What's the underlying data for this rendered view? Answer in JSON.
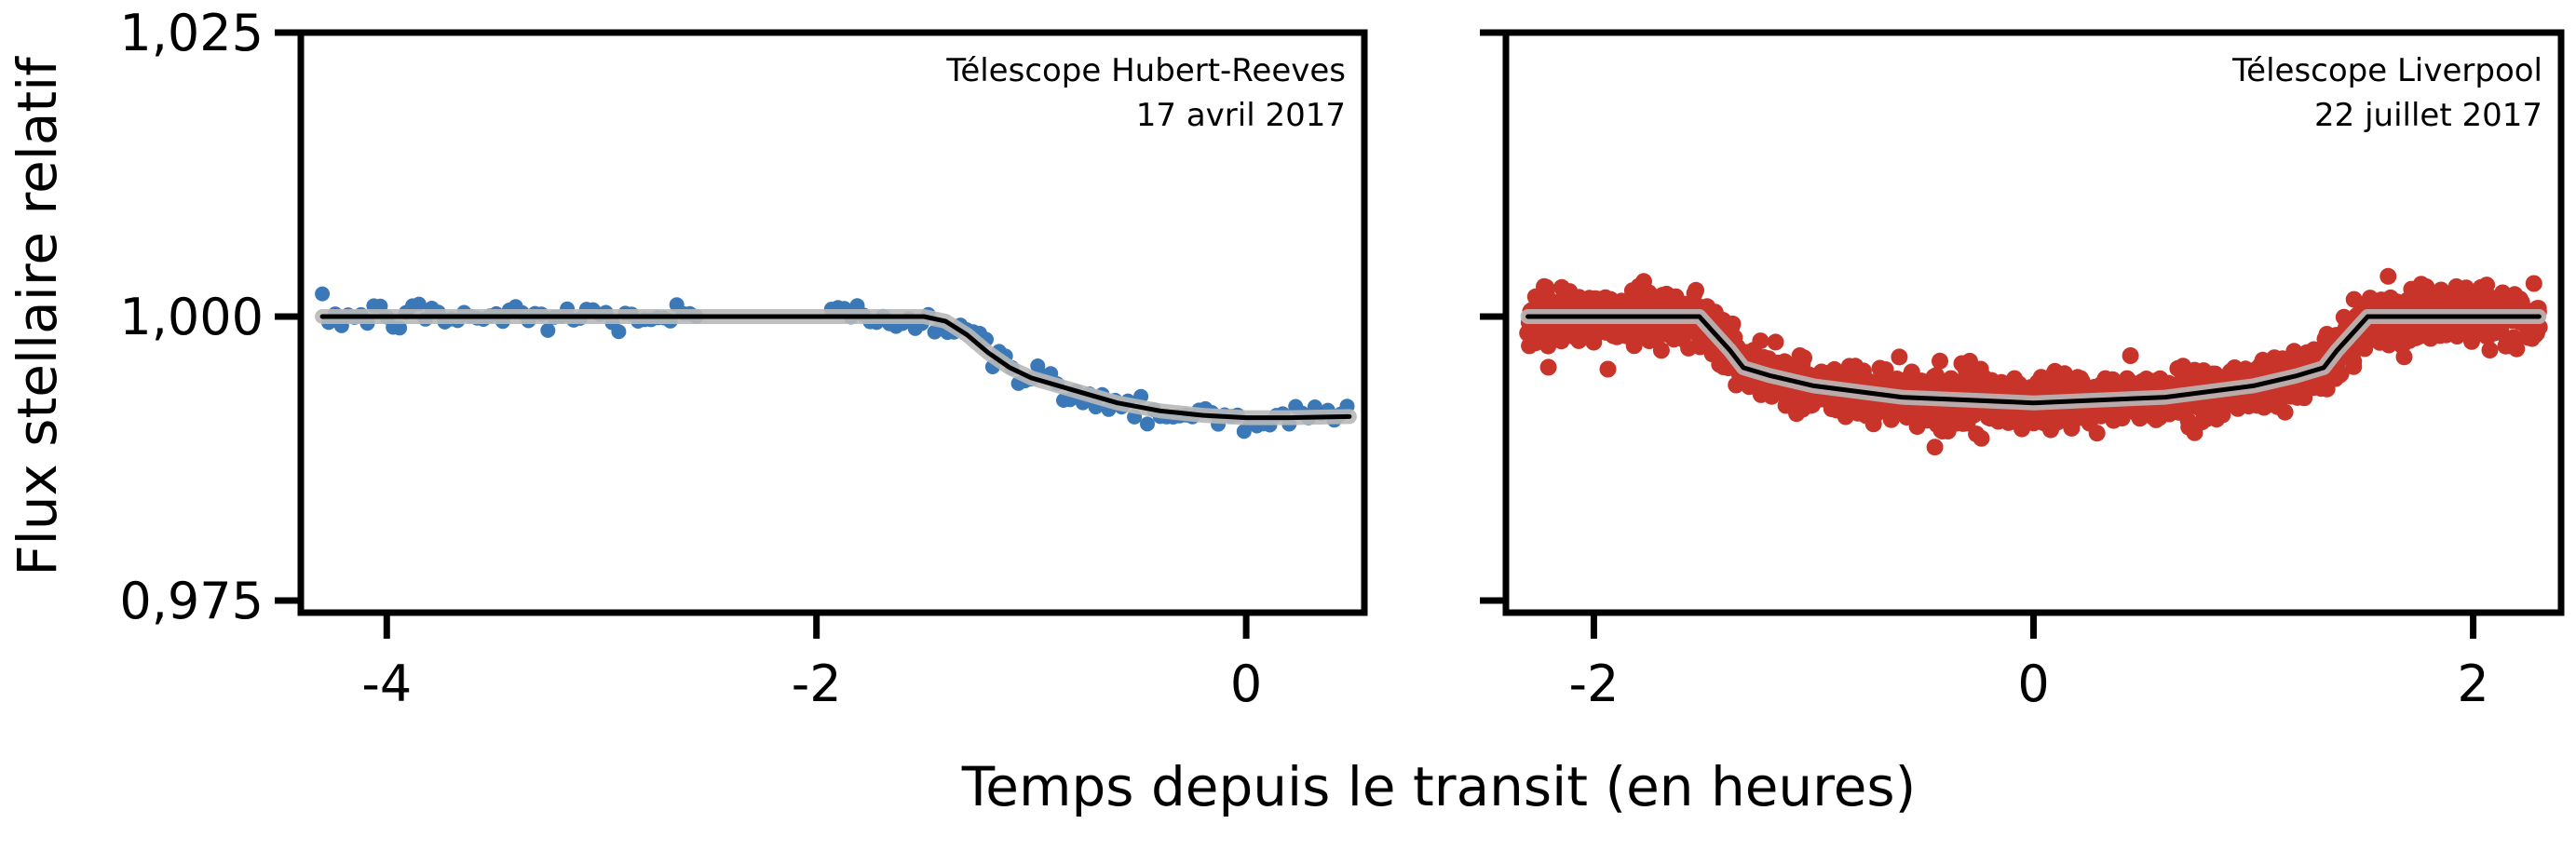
{
  "chart_data": {
    "type": "scatter",
    "xlabel": "Temps depuis le transit (en heures)",
    "ylabel": "Flux stellaire relatif",
    "ylim": [
      0.975,
      1.025
    ],
    "yticks": [
      0.975,
      1.0,
      1.025
    ],
    "ytick_labels": [
      "0,975",
      "1,000",
      "1,025"
    ],
    "grid": false,
    "panels": [
      {
        "annotation_line1": "Télescope Hubert-Reeves",
        "annotation_line2": "17 avril 2017",
        "annotation_placement": "top-right",
        "xlim": [
          -4.4,
          0.55
        ],
        "xticks": [
          -4,
          -2,
          0
        ],
        "xtick_labels": [
          "-4",
          "-2",
          "0"
        ],
        "point_color": "#3b78b8",
        "model_color": "#000000",
        "model_band_color": "#b8b8b8",
        "x_start": -4.3,
        "x_end": 0.48,
        "gaps": [
          [
            -2.55,
            -1.95
          ]
        ],
        "point_spacing": 0.03,
        "scatter_sd": 0.0008,
        "transit_points": [
          [
            -4.3,
            1.0
          ],
          [
            -1.5,
            1.0
          ],
          [
            -1.4,
            0.9996
          ],
          [
            -1.3,
            0.9984
          ],
          [
            -1.2,
            0.9968
          ],
          [
            -1.1,
            0.9955
          ],
          [
            -1.0,
            0.9946
          ],
          [
            -0.8,
            0.9935
          ],
          [
            -0.6,
            0.9924
          ],
          [
            -0.4,
            0.9917
          ],
          [
            -0.2,
            0.9913
          ],
          [
            0.0,
            0.9911
          ],
          [
            0.2,
            0.9911
          ],
          [
            0.48,
            0.9912
          ]
        ]
      },
      {
        "annotation_line1": "Télescope Liverpool",
        "annotation_line2": "22 juillet 2017",
        "annotation_placement": "top-right",
        "xlim": [
          -2.4,
          2.4
        ],
        "xticks": [
          -2,
          0,
          2
        ],
        "xtick_labels": [
          "-2",
          "0",
          "2"
        ],
        "point_color": "#c8342a",
        "model_color": "#000000",
        "model_band_color": "#b8b8b8",
        "x_start": -2.3,
        "x_end": 2.3,
        "gaps": [],
        "point_spacing": 0.0025,
        "scatter_sd": 0.0013,
        "transit_points": [
          [
            -2.3,
            1.0
          ],
          [
            -1.52,
            1.0
          ],
          [
            -1.45,
            0.9985
          ],
          [
            -1.38,
            0.997
          ],
          [
            -1.32,
            0.9955
          ],
          [
            -1.2,
            0.9948
          ],
          [
            -1.0,
            0.9939
          ],
          [
            -0.6,
            0.9929
          ],
          [
            0.0,
            0.9924
          ],
          [
            0.6,
            0.9929
          ],
          [
            1.0,
            0.9939
          ],
          [
            1.2,
            0.9948
          ],
          [
            1.32,
            0.9955
          ],
          [
            1.38,
            0.997
          ],
          [
            1.45,
            0.9985
          ],
          [
            1.52,
            1.0
          ],
          [
            2.3,
            1.0
          ]
        ]
      }
    ]
  }
}
